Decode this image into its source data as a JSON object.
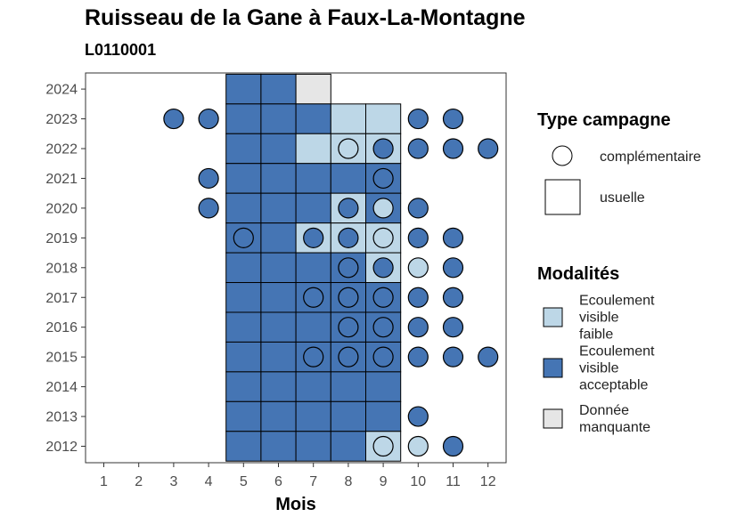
{
  "title": "Ruisseau de la Gane à Faux-La-Montagne",
  "subtitle": "L0110001",
  "chart_data": {
    "type": "heatmap",
    "title": "Ruisseau de la Gane à Faux-La-Montagne",
    "subtitle": "L0110001",
    "xlabel": "Mois",
    "ylabel": "",
    "x_ticks": [
      "1",
      "2",
      "3",
      "4",
      "5",
      "6",
      "7",
      "8",
      "9",
      "10",
      "11",
      "12"
    ],
    "y_ticks": [
      "2012",
      "2013",
      "2014",
      "2015",
      "2016",
      "2017",
      "2018",
      "2019",
      "2020",
      "2021",
      "2022",
      "2023",
      "2024"
    ],
    "colors": {
      "Ecoulement visible faible": "#BDD7E7",
      "Ecoulement visible acceptable": "#4575B4",
      "Donnée manquante": "#E6E6E6"
    },
    "legend": {
      "type_title": "Type campagne",
      "type_items": [
        {
          "shape": "circle",
          "label": "complémentaire"
        },
        {
          "shape": "square",
          "label": "usuelle"
        }
      ],
      "modal_title": "Modalités",
      "modal_items": [
        {
          "key": "Ecoulement visible faible",
          "lines": [
            "Ecoulement",
            "visible",
            "faible"
          ]
        },
        {
          "key": "Ecoulement visible acceptable",
          "lines": [
            "Ecoulement",
            "visible",
            "acceptable"
          ]
        },
        {
          "key": "Donnée manquante",
          "lines": [
            "Donnée",
            "manquante"
          ]
        }
      ]
    },
    "usuelle": [
      {
        "year": 2024,
        "month": 5,
        "modalite": "Ecoulement visible acceptable"
      },
      {
        "year": 2024,
        "month": 6,
        "modalite": "Ecoulement visible acceptable"
      },
      {
        "year": 2024,
        "month": 7,
        "modalite": "Donnée manquante"
      },
      {
        "year": 2023,
        "month": 5,
        "modalite": "Ecoulement visible acceptable"
      },
      {
        "year": 2023,
        "month": 6,
        "modalite": "Ecoulement visible acceptable"
      },
      {
        "year": 2023,
        "month": 7,
        "modalite": "Ecoulement visible acceptable"
      },
      {
        "year": 2023,
        "month": 8,
        "modalite": "Ecoulement visible faible"
      },
      {
        "year": 2023,
        "month": 9,
        "modalite": "Ecoulement visible faible"
      },
      {
        "year": 2022,
        "month": 5,
        "modalite": "Ecoulement visible acceptable"
      },
      {
        "year": 2022,
        "month": 6,
        "modalite": "Ecoulement visible acceptable"
      },
      {
        "year": 2022,
        "month": 7,
        "modalite": "Ecoulement visible faible"
      },
      {
        "year": 2022,
        "month": 8,
        "modalite": "Ecoulement visible faible"
      },
      {
        "year": 2022,
        "month": 9,
        "modalite": "Ecoulement visible faible"
      },
      {
        "year": 2021,
        "month": 5,
        "modalite": "Ecoulement visible acceptable"
      },
      {
        "year": 2021,
        "month": 6,
        "modalite": "Ecoulement visible acceptable"
      },
      {
        "year": 2021,
        "month": 7,
        "modalite": "Ecoulement visible acceptable"
      },
      {
        "year": 2021,
        "month": 8,
        "modalite": "Ecoulement visible acceptable"
      },
      {
        "year": 2021,
        "month": 9,
        "modalite": "Ecoulement visible acceptable"
      },
      {
        "year": 2020,
        "month": 5,
        "modalite": "Ecoulement visible acceptable"
      },
      {
        "year": 2020,
        "month": 6,
        "modalite": "Ecoulement visible acceptable"
      },
      {
        "year": 2020,
        "month": 7,
        "modalite": "Ecoulement visible acceptable"
      },
      {
        "year": 2020,
        "month": 8,
        "modalite": "Ecoulement visible faible"
      },
      {
        "year": 2020,
        "month": 9,
        "modalite": "Ecoulement visible acceptable"
      },
      {
        "year": 2019,
        "month": 5,
        "modalite": "Ecoulement visible acceptable"
      },
      {
        "year": 2019,
        "month": 6,
        "modalite": "Ecoulement visible acceptable"
      },
      {
        "year": 2019,
        "month": 7,
        "modalite": "Ecoulement visible faible"
      },
      {
        "year": 2019,
        "month": 8,
        "modalite": "Ecoulement visible faible"
      },
      {
        "year": 2019,
        "month": 9,
        "modalite": "Ecoulement visible faible"
      },
      {
        "year": 2018,
        "month": 5,
        "modalite": "Ecoulement visible acceptable"
      },
      {
        "year": 2018,
        "month": 6,
        "modalite": "Ecoulement visible acceptable"
      },
      {
        "year": 2018,
        "month": 7,
        "modalite": "Ecoulement visible acceptable"
      },
      {
        "year": 2018,
        "month": 8,
        "modalite": "Ecoulement visible acceptable"
      },
      {
        "year": 2018,
        "month": 9,
        "modalite": "Ecoulement visible faible"
      },
      {
        "year": 2017,
        "month": 5,
        "modalite": "Ecoulement visible acceptable"
      },
      {
        "year": 2017,
        "month": 6,
        "modalite": "Ecoulement visible acceptable"
      },
      {
        "year": 2017,
        "month": 7,
        "modalite": "Ecoulement visible acceptable"
      },
      {
        "year": 2017,
        "month": 8,
        "modalite": "Ecoulement visible acceptable"
      },
      {
        "year": 2017,
        "month": 9,
        "modalite": "Ecoulement visible acceptable"
      },
      {
        "year": 2016,
        "month": 5,
        "modalite": "Ecoulement visible acceptable"
      },
      {
        "year": 2016,
        "month": 6,
        "modalite": "Ecoulement visible acceptable"
      },
      {
        "year": 2016,
        "month": 7,
        "modalite": "Ecoulement visible acceptable"
      },
      {
        "year": 2016,
        "month": 8,
        "modalite": "Ecoulement visible acceptable"
      },
      {
        "year": 2016,
        "month": 9,
        "modalite": "Ecoulement visible acceptable"
      },
      {
        "year": 2015,
        "month": 5,
        "modalite": "Ecoulement visible acceptable"
      },
      {
        "year": 2015,
        "month": 6,
        "modalite": "Ecoulement visible acceptable"
      },
      {
        "year": 2015,
        "month": 7,
        "modalite": "Ecoulement visible acceptable"
      },
      {
        "year": 2015,
        "month": 8,
        "modalite": "Ecoulement visible acceptable"
      },
      {
        "year": 2015,
        "month": 9,
        "modalite": "Ecoulement visible acceptable"
      },
      {
        "year": 2014,
        "month": 5,
        "modalite": "Ecoulement visible acceptable"
      },
      {
        "year": 2014,
        "month": 6,
        "modalite": "Ecoulement visible acceptable"
      },
      {
        "year": 2014,
        "month": 7,
        "modalite": "Ecoulement visible acceptable"
      },
      {
        "year": 2014,
        "month": 8,
        "modalite": "Ecoulement visible acceptable"
      },
      {
        "year": 2014,
        "month": 9,
        "modalite": "Ecoulement visible acceptable"
      },
      {
        "year": 2013,
        "month": 5,
        "modalite": "Ecoulement visible acceptable"
      },
      {
        "year": 2013,
        "month": 6,
        "modalite": "Ecoulement visible acceptable"
      },
      {
        "year": 2013,
        "month": 7,
        "modalite": "Ecoulement visible acceptable"
      },
      {
        "year": 2013,
        "month": 8,
        "modalite": "Ecoulement visible acceptable"
      },
      {
        "year": 2013,
        "month": 9,
        "modalite": "Ecoulement visible acceptable"
      },
      {
        "year": 2012,
        "month": 5,
        "modalite": "Ecoulement visible acceptable"
      },
      {
        "year": 2012,
        "month": 6,
        "modalite": "Ecoulement visible acceptable"
      },
      {
        "year": 2012,
        "month": 7,
        "modalite": "Ecoulement visible acceptable"
      },
      {
        "year": 2012,
        "month": 8,
        "modalite": "Ecoulement visible acceptable"
      },
      {
        "year": 2012,
        "month": 9,
        "modalite": "Ecoulement visible faible"
      }
    ],
    "complementaire": [
      {
        "year": 2023,
        "month": 3,
        "modalite": "Ecoulement visible acceptable"
      },
      {
        "year": 2023,
        "month": 4,
        "modalite": "Ecoulement visible acceptable"
      },
      {
        "year": 2023,
        "month": 10,
        "modalite": "Ecoulement visible acceptable"
      },
      {
        "year": 2023,
        "month": 11,
        "modalite": "Ecoulement visible acceptable"
      },
      {
        "year": 2022,
        "month": 8,
        "modalite": "Ecoulement visible faible"
      },
      {
        "year": 2022,
        "month": 9,
        "modalite": "Ecoulement visible acceptable"
      },
      {
        "year": 2022,
        "month": 10,
        "modalite": "Ecoulement visible acceptable"
      },
      {
        "year": 2022,
        "month": 11,
        "modalite": "Ecoulement visible acceptable"
      },
      {
        "year": 2022,
        "month": 12,
        "modalite": "Ecoulement visible acceptable"
      },
      {
        "year": 2021,
        "month": 4,
        "modalite": "Ecoulement visible acceptable"
      },
      {
        "year": 2021,
        "month": 9,
        "modalite": "Ecoulement visible acceptable"
      },
      {
        "year": 2020,
        "month": 4,
        "modalite": "Ecoulement visible acceptable"
      },
      {
        "year": 2020,
        "month": 8,
        "modalite": "Ecoulement visible acceptable"
      },
      {
        "year": 2020,
        "month": 9,
        "modalite": "Ecoulement visible faible"
      },
      {
        "year": 2020,
        "month": 10,
        "modalite": "Ecoulement visible acceptable"
      },
      {
        "year": 2019,
        "month": 5,
        "modalite": "Ecoulement visible acceptable"
      },
      {
        "year": 2019,
        "month": 7,
        "modalite": "Ecoulement visible acceptable"
      },
      {
        "year": 2019,
        "month": 8,
        "modalite": "Ecoulement visible acceptable"
      },
      {
        "year": 2019,
        "month": 9,
        "modalite": "Ecoulement visible faible"
      },
      {
        "year": 2019,
        "month": 10,
        "modalite": "Ecoulement visible acceptable"
      },
      {
        "year": 2019,
        "month": 11,
        "modalite": "Ecoulement visible acceptable"
      },
      {
        "year": 2018,
        "month": 8,
        "modalite": "Ecoulement visible acceptable"
      },
      {
        "year": 2018,
        "month": 9,
        "modalite": "Ecoulement visible acceptable"
      },
      {
        "year": 2018,
        "month": 10,
        "modalite": "Ecoulement visible faible"
      },
      {
        "year": 2018,
        "month": 11,
        "modalite": "Ecoulement visible acceptable"
      },
      {
        "year": 2017,
        "month": 7,
        "modalite": "Ecoulement visible acceptable"
      },
      {
        "year": 2017,
        "month": 8,
        "modalite": "Ecoulement visible acceptable"
      },
      {
        "year": 2017,
        "month": 9,
        "modalite": "Ecoulement visible acceptable"
      },
      {
        "year": 2017,
        "month": 10,
        "modalite": "Ecoulement visible acceptable"
      },
      {
        "year": 2017,
        "month": 11,
        "modalite": "Ecoulement visible acceptable"
      },
      {
        "year": 2016,
        "month": 8,
        "modalite": "Ecoulement visible acceptable"
      },
      {
        "year": 2016,
        "month": 9,
        "modalite": "Ecoulement visible acceptable"
      },
      {
        "year": 2016,
        "month": 10,
        "modalite": "Ecoulement visible acceptable"
      },
      {
        "year": 2016,
        "month": 11,
        "modalite": "Ecoulement visible acceptable"
      },
      {
        "year": 2015,
        "month": 7,
        "modalite": "Ecoulement visible acceptable"
      },
      {
        "year": 2015,
        "month": 8,
        "modalite": "Ecoulement visible acceptable"
      },
      {
        "year": 2015,
        "month": 9,
        "modalite": "Ecoulement visible acceptable"
      },
      {
        "year": 2015,
        "month": 10,
        "modalite": "Ecoulement visible acceptable"
      },
      {
        "year": 2015,
        "month": 11,
        "modalite": "Ecoulement visible acceptable"
      },
      {
        "year": 2015,
        "month": 12,
        "modalite": "Ecoulement visible acceptable"
      },
      {
        "year": 2013,
        "month": 10,
        "modalite": "Ecoulement visible acceptable"
      },
      {
        "year": 2012,
        "month": 9,
        "modalite": "Ecoulement visible faible"
      },
      {
        "year": 2012,
        "month": 10,
        "modalite": "Ecoulement visible faible"
      },
      {
        "year": 2012,
        "month": 11,
        "modalite": "Ecoulement visible acceptable"
      }
    ]
  }
}
